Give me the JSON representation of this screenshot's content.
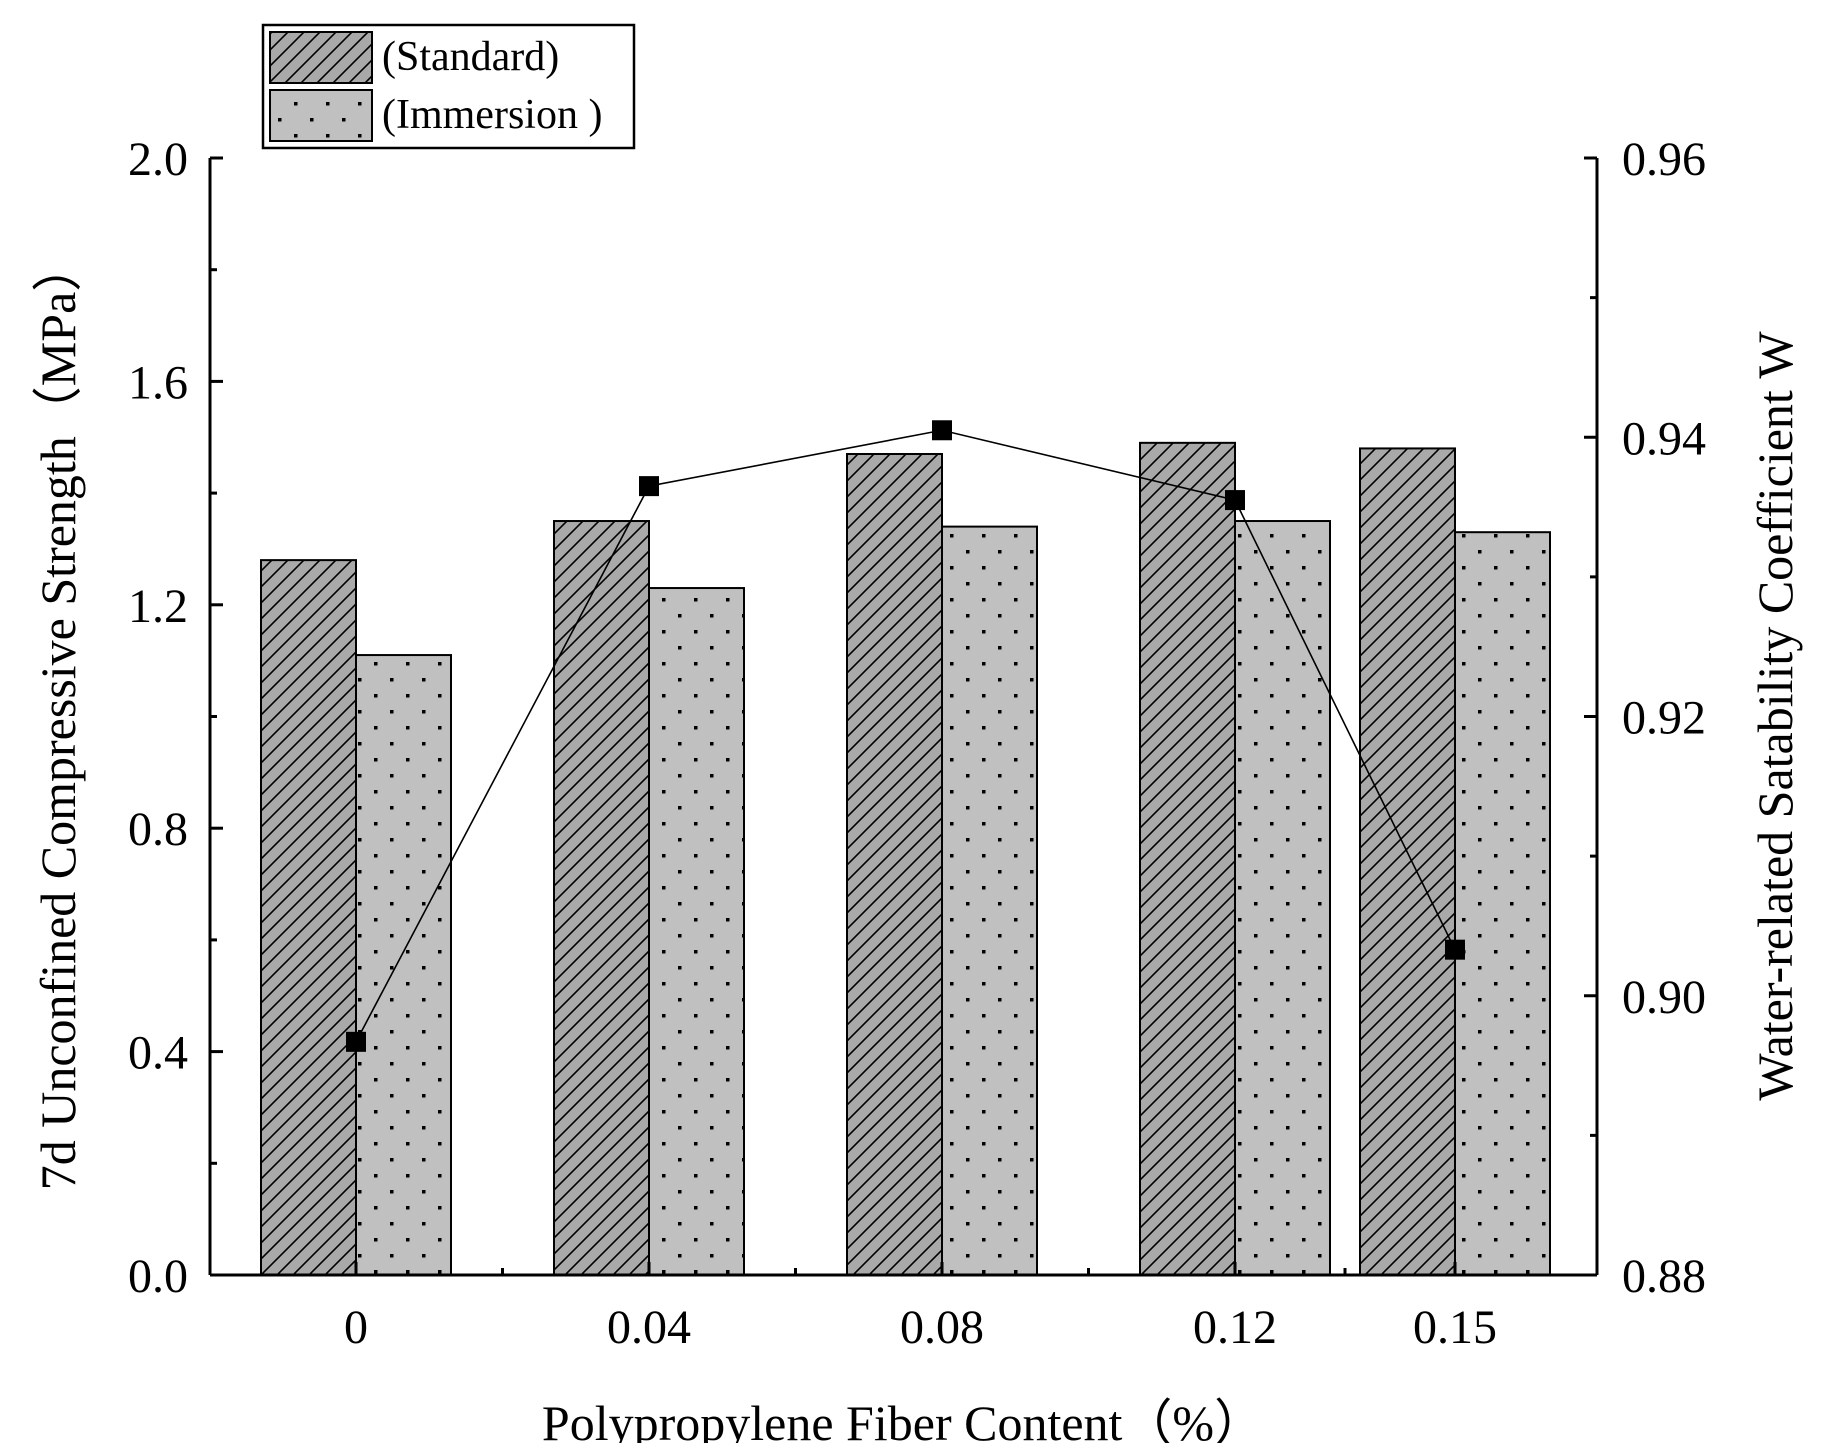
{
  "chart_data": {
    "type": "bar",
    "categories": [
      "0",
      "0.04",
      "0.08",
      "0.12",
      "0.15"
    ],
    "series": [
      {
        "name": "(Standard)",
        "axis": "left",
        "pattern": "hatch",
        "values": [
          1.28,
          1.35,
          1.47,
          1.49,
          1.48
        ]
      },
      {
        "name": "(Immersion )",
        "axis": "left",
        "pattern": "dots",
        "values": [
          1.11,
          1.23,
          1.34,
          1.35,
          1.33
        ]
      }
    ],
    "line_series": {
      "name": "Water-related Satability Coefficient W",
      "axis": "right",
      "marker": "square",
      "values": [
        0.8967,
        0.9365,
        0.9405,
        0.9355,
        0.9033
      ]
    },
    "xlabel": "Polypropylene Fiber Content（%）",
    "ylabel": "7d Unconfined Compressive Strength（MPa）",
    "y2label": "Water-related Satability Coefficient W",
    "ylim": [
      0.0,
      2.0
    ],
    "y2lim": [
      0.88,
      0.96
    ],
    "yticks": [
      "0.0",
      "0.4",
      "0.8",
      "1.2",
      "1.6",
      "2.0"
    ],
    "y2ticks": [
      "0.88",
      "0.90",
      "0.92",
      "0.94",
      "0.96"
    ],
    "legend_position": "top-left",
    "colors": {
      "bar_fill": "#c0c0c0",
      "hatch_fill": "#a8a8a8",
      "line": "#000000"
    }
  }
}
